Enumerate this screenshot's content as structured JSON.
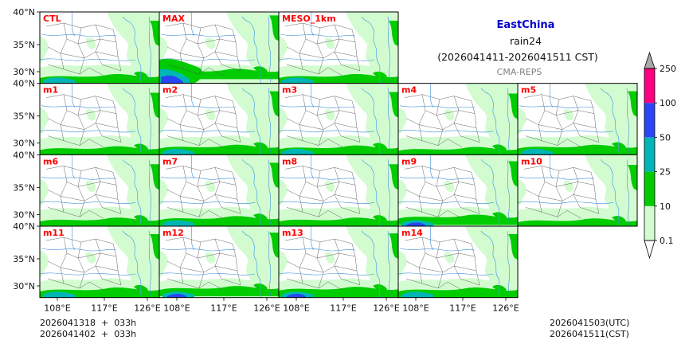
{
  "header": {
    "region": "EastChina",
    "variable": "rain24",
    "period": "(2026041411-2026041511 CST)",
    "source": "CMA-REPS"
  },
  "colors": {
    "region_title": "#0000cc",
    "panel_label": "#ff0000",
    "source": "#7f7f7f",
    "land": "#ffffff",
    "levels": [
      "#d2fcd0",
      "#00cc00",
      "#00b5b5",
      "#2a45f5",
      "#ff0080",
      "#a8a8a8"
    ]
  },
  "panels": [
    [
      "CTL",
      "MAX",
      "MESO_1km"
    ],
    [
      "m1",
      "m2",
      "m3",
      "m4",
      "m5"
    ],
    [
      "m6",
      "m7",
      "m8",
      "m9",
      "m10"
    ],
    [
      "m11",
      "m12",
      "m13",
      "m14"
    ]
  ],
  "panel_intensity": {
    "CTL": 0.9,
    "MAX": 1.6,
    "MESO_1km": 0.9,
    "m1": 0.8,
    "m2": 1.0,
    "m3": 0.9,
    "m4": 0.7,
    "m5": 1.0,
    "m6": 0.8,
    "m7": 1.0,
    "m8": 0.8,
    "m9": 1.2,
    "m10": 0.7,
    "m11": 1.0,
    "m12": 1.2,
    "m13": 1.1,
    "m14": 1.0
  },
  "axes": {
    "lat_ticks": [
      "40°N",
      "35°N",
      "30°N"
    ],
    "lon_ticks": [
      "108°E",
      "117°E",
      "126°E"
    ]
  },
  "colorbar": {
    "labels": [
      "0.1",
      "10",
      "25",
      "50",
      "100",
      "250"
    ],
    "extend": "both"
  },
  "footer": {
    "init_line": "2026041318  +  033h",
    "init_line_local": "2026041402  +  033h",
    "valid_utc": "2026041503(UTC)",
    "valid_cst": "2026041511(CST)"
  }
}
